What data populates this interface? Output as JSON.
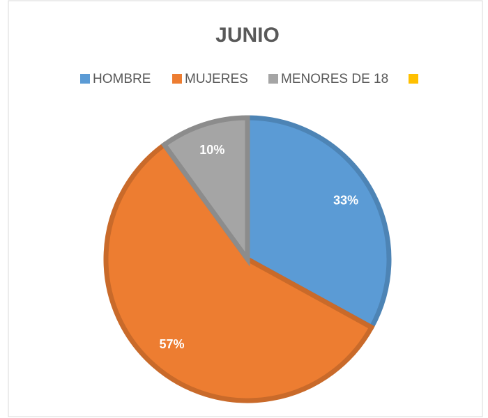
{
  "chart_data": {
    "type": "pie",
    "title": "JUNIO",
    "categories": [
      "HOMBRE",
      "MUJERES",
      "MENORES DE 18",
      null
    ],
    "values": [
      33,
      57,
      10,
      0
    ],
    "value_labels": [
      "33%",
      "57%",
      "10%",
      null
    ],
    "colors": [
      "#5b9bd5",
      "#ed7d31",
      "#a5a5a5",
      "#ffc000"
    ],
    "legend": "top"
  }
}
